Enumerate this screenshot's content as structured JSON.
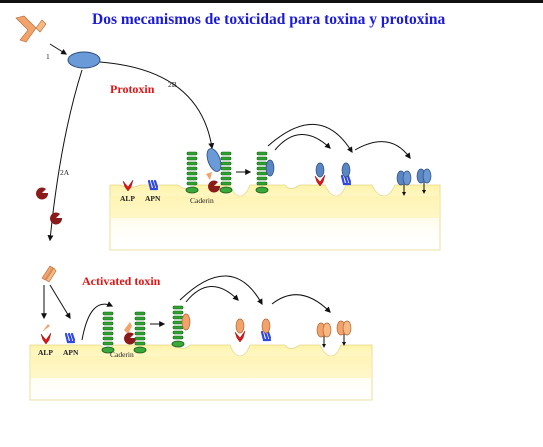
{
  "title": "Dos mecanismos de toxicidad para toxina y protoxina",
  "labels": {
    "protoxin": "Protoxin",
    "activated_toxin": "Activated toxin",
    "step_1": "1",
    "step_2a": "2A",
    "step_2b": "2B",
    "alp_top": "ALP",
    "apn_top": "APN",
    "caderin_top": "Caderin",
    "alp_bottom": "ALP",
    "apn_bottom": "APN",
    "caderin_bottom": "Caderin"
  },
  "colors": {
    "title": "#1a1adb",
    "red_label": "#e01515",
    "membrane": "#fff3a8",
    "receptor_green": "#2fa32f",
    "protoxin_blue": "#5a86c4",
    "toxin_orange": "#f2a36b"
  }
}
